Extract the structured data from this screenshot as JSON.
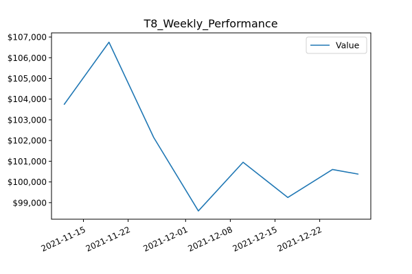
{
  "chart_data": {
    "type": "line",
    "title": "T8_Weekly_Performance",
    "xlabel": "",
    "ylabel": "",
    "x": [
      "2021-11-12",
      "2021-11-19",
      "2021-11-26",
      "2021-12-03",
      "2021-12-10",
      "2021-12-17",
      "2021-12-24",
      "2021-12-28"
    ],
    "x_ticks": [
      "2021-11-15",
      "2021-11-22",
      "2021-12-01",
      "2021-12-08",
      "2021-12-15",
      "2021-12-22"
    ],
    "x_range": [
      "2021-11-10",
      "2021-12-30"
    ],
    "y_ticks": [
      99000,
      100000,
      101000,
      102000,
      103000,
      104000,
      105000,
      106000,
      107000
    ],
    "y_tick_labels": [
      "$99,000",
      "$100,000",
      "$101,000",
      "$102,000",
      "$103,000",
      "$104,000",
      "$105,000",
      "$106,000",
      "$107,000"
    ],
    "ylim": [
      98200,
      107200
    ],
    "grid": false,
    "legend_position": "top-right",
    "series": [
      {
        "name": "Value",
        "color": "#1f77b4",
        "values": [
          103750,
          106750,
          102150,
          98600,
          100950,
          99250,
          100600,
          100380
        ]
      }
    ]
  }
}
